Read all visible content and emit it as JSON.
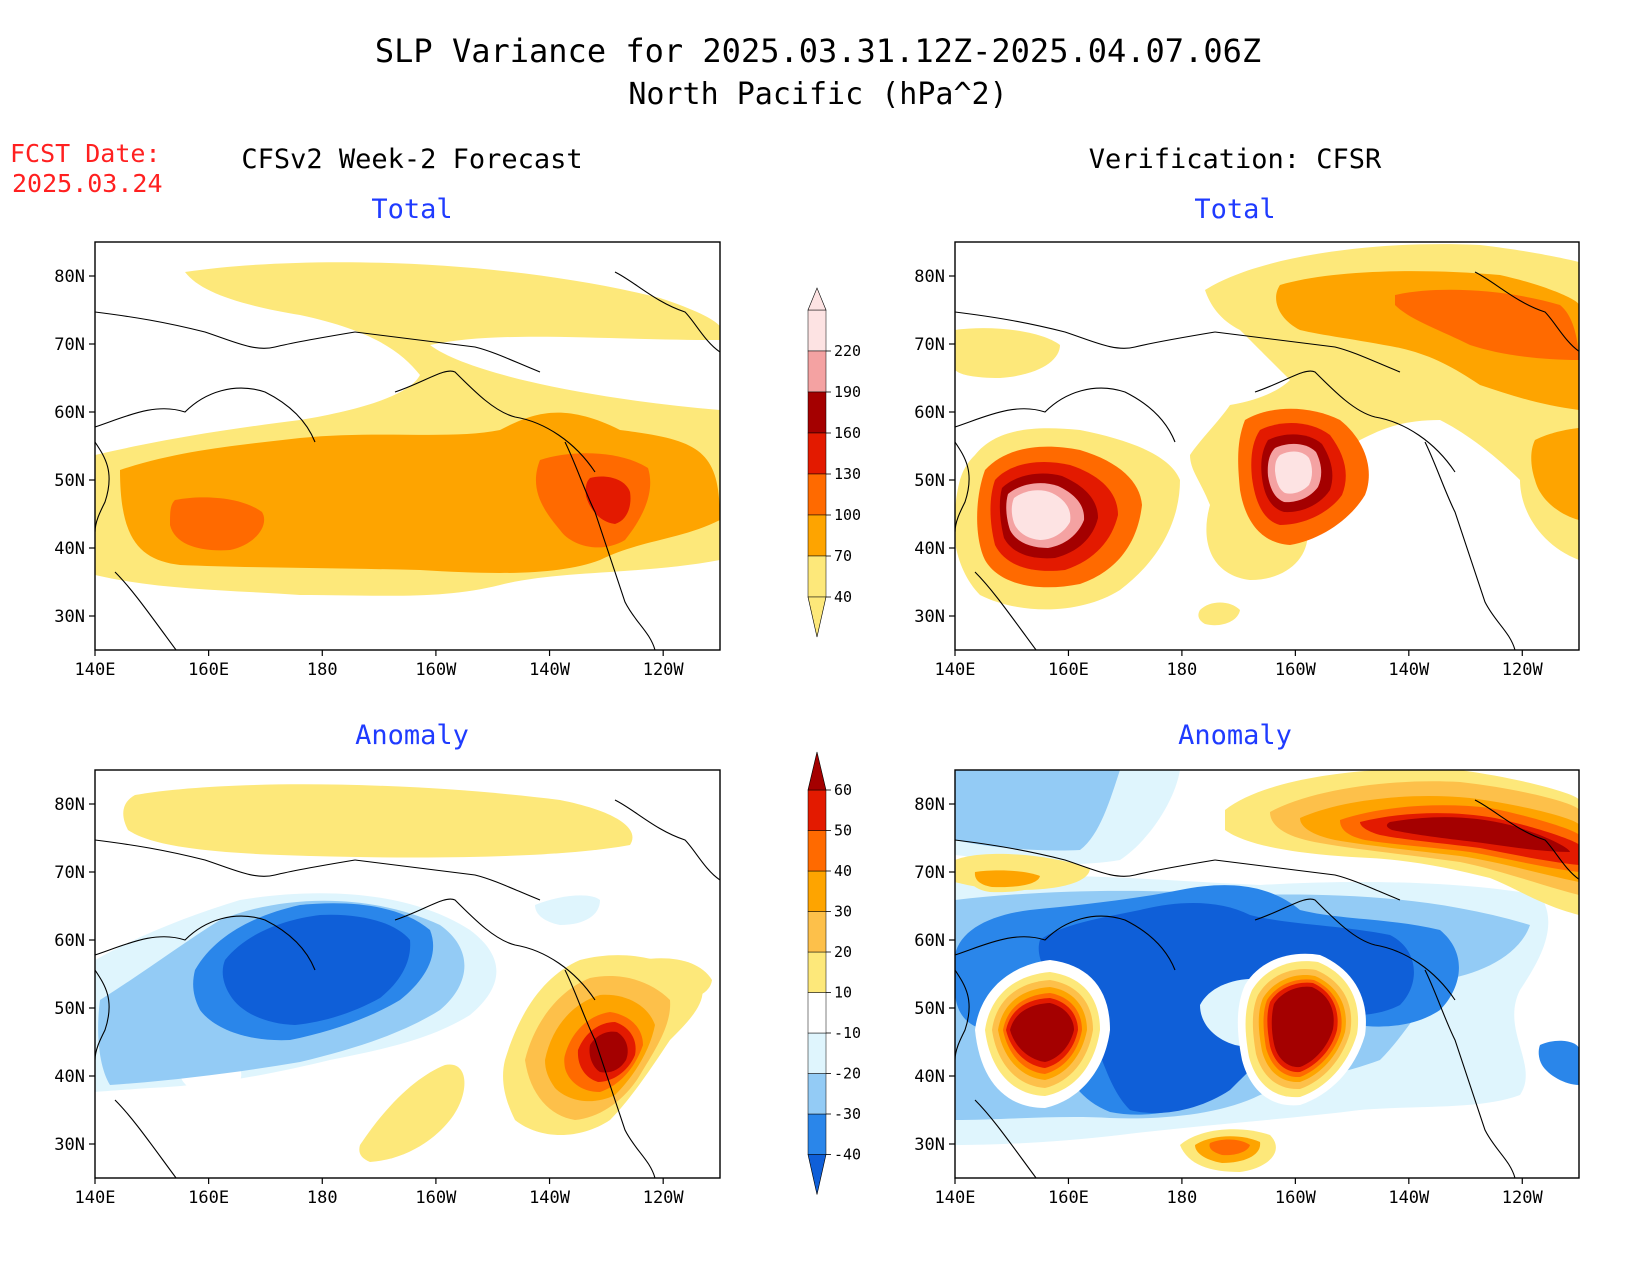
{
  "header": {
    "title_line1": "SLP Variance for 2025.03.31.12Z-2025.04.07.06Z",
    "title_line2": "North Pacific (hPa^2)"
  },
  "fcst": {
    "line1": "FCST Date:",
    "line2": "2025.03.24"
  },
  "columns": {
    "left": "CFSv2 Week-2 Forecast",
    "right": "Verification: CFSR"
  },
  "panels": {
    "total_label": "Total",
    "anomaly_label": "Anomaly"
  },
  "axes": {
    "lon_ticks": [
      "140E",
      "160E",
      "180",
      "160W",
      "140W",
      "120W"
    ],
    "lat_ticks": [
      "80N",
      "70N",
      "60N",
      "50N",
      "40N",
      "30N"
    ],
    "lon_values": [
      140,
      160,
      180,
      200,
      220,
      240
    ],
    "lat_values": [
      80,
      70,
      60,
      50,
      40,
      30
    ],
    "lon_range": [
      140,
      250
    ],
    "lat_range": [
      25,
      85
    ]
  },
  "colorbars": {
    "total": {
      "labels": [
        "40",
        "70",
        "100",
        "130",
        "160",
        "190",
        "220"
      ],
      "colors": [
        "#fde87a",
        "#fea400",
        "#ff6a00",
        "#e31a00",
        "#a40000",
        "#f4a2a2",
        "#fde3e3"
      ]
    },
    "anomaly": {
      "labels": [
        "-40",
        "-30",
        "-20",
        "-10",
        "10",
        "20",
        "30",
        "40",
        "50",
        "60"
      ],
      "colors": [
        "#0f5fd8",
        "#2a86ea",
        "#93cbf5",
        "#dff5fd",
        "#ffffff",
        "#fde87a",
        "#fdc04a",
        "#fea400",
        "#ff6a00",
        "#e31a00",
        "#a40000"
      ]
    }
  },
  "colors": {
    "title": "#000000",
    "fcst": "#ff2020",
    "panel_label": "#1f3bff"
  }
}
